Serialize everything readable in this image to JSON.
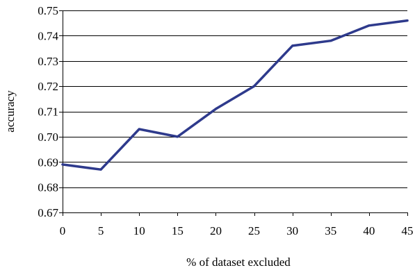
{
  "chart_data": {
    "type": "line",
    "xlabel": "% of dataset excluded",
    "ylabel": "accuracy",
    "x": [
      0,
      5,
      10,
      15,
      20,
      25,
      30,
      35,
      40,
      45
    ],
    "series": [
      {
        "values": [
          0.689,
          0.687,
          0.703,
          0.7,
          0.711,
          0.72,
          0.736,
          0.738,
          0.744,
          0.746
        ]
      }
    ],
    "xlim": [
      0,
      45
    ],
    "ylim": [
      0.67,
      0.75
    ],
    "xticks": [
      "0",
      "5",
      "10",
      "15",
      "20",
      "25",
      "30",
      "35",
      "40",
      "45"
    ],
    "yticks": [
      "0.67",
      "0.68",
      "0.69",
      "0.70",
      "0.71",
      "0.72",
      "0.73",
      "0.74",
      "0.75"
    ],
    "grid": "horizontal",
    "legend": "none",
    "line_color": "#2e3a8c"
  }
}
